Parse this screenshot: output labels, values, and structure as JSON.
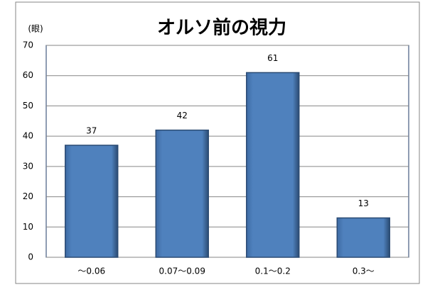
{
  "chart_data": {
    "type": "bar",
    "title": "オルソ前の視力",
    "y_label": "(眼)",
    "categories": [
      "～0.06",
      "0.07～0.09",
      "0.1～0.2",
      "0.3～"
    ],
    "values": [
      37,
      42,
      61,
      13
    ],
    "color": "#4f81bd",
    "ylim": [
      0,
      70
    ],
    "yticks": [
      0,
      10,
      20,
      30,
      40,
      50,
      60,
      70
    ],
    "grid": true
  }
}
